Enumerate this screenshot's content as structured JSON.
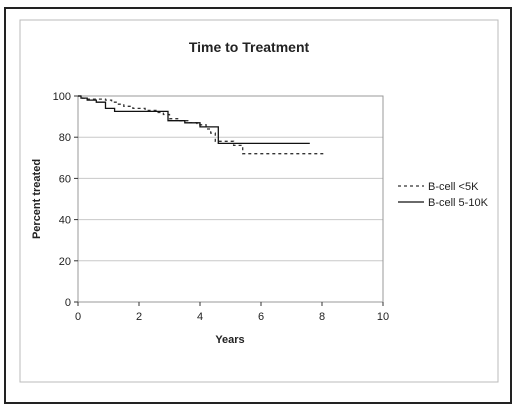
{
  "chart_data": {
    "type": "line",
    "title": "Time to Treatment",
    "xlabel": "Years",
    "ylabel": "Percent treated",
    "xlim": [
      0,
      10
    ],
    "ylim": [
      0,
      100
    ],
    "x_ticks": [
      0,
      2,
      4,
      6,
      8,
      10
    ],
    "y_ticks": [
      0,
      20,
      40,
      60,
      80,
      100
    ],
    "grid": "horizontal",
    "legend_position": "right",
    "series": [
      {
        "name": "B-cell <5K",
        "style": "dashed",
        "color": "#333333",
        "x": [
          0,
          0.15,
          0.3,
          0.6,
          0.9,
          1.1,
          1.3,
          1.5,
          1.8,
          2.2,
          2.6,
          2.8,
          3.0,
          3.3,
          3.6,
          3.9,
          4.2,
          4.35,
          4.5,
          5.1,
          5.4,
          5.8,
          6.3,
          7.0,
          7.5,
          8.1
        ],
        "y": [
          100,
          99,
          98.5,
          98.5,
          98,
          97,
          96,
          95,
          94,
          93,
          92,
          91,
          89,
          88,
          87,
          86,
          84,
          82,
          78,
          76,
          72,
          72,
          72,
          72,
          72,
          72
        ]
      },
      {
        "name": "B-cell 5-10K",
        "style": "solid",
        "color": "#111111",
        "x": [
          0,
          0.1,
          0.3,
          0.6,
          0.9,
          1.2,
          2.3,
          2.95,
          3.1,
          3.5,
          4.0,
          4.4,
          4.6,
          5.0,
          7.6
        ],
        "y": [
          100,
          99,
          98,
          97,
          94,
          92.5,
          92.5,
          88,
          88,
          87,
          85,
          85,
          77,
          77,
          77
        ]
      }
    ]
  }
}
